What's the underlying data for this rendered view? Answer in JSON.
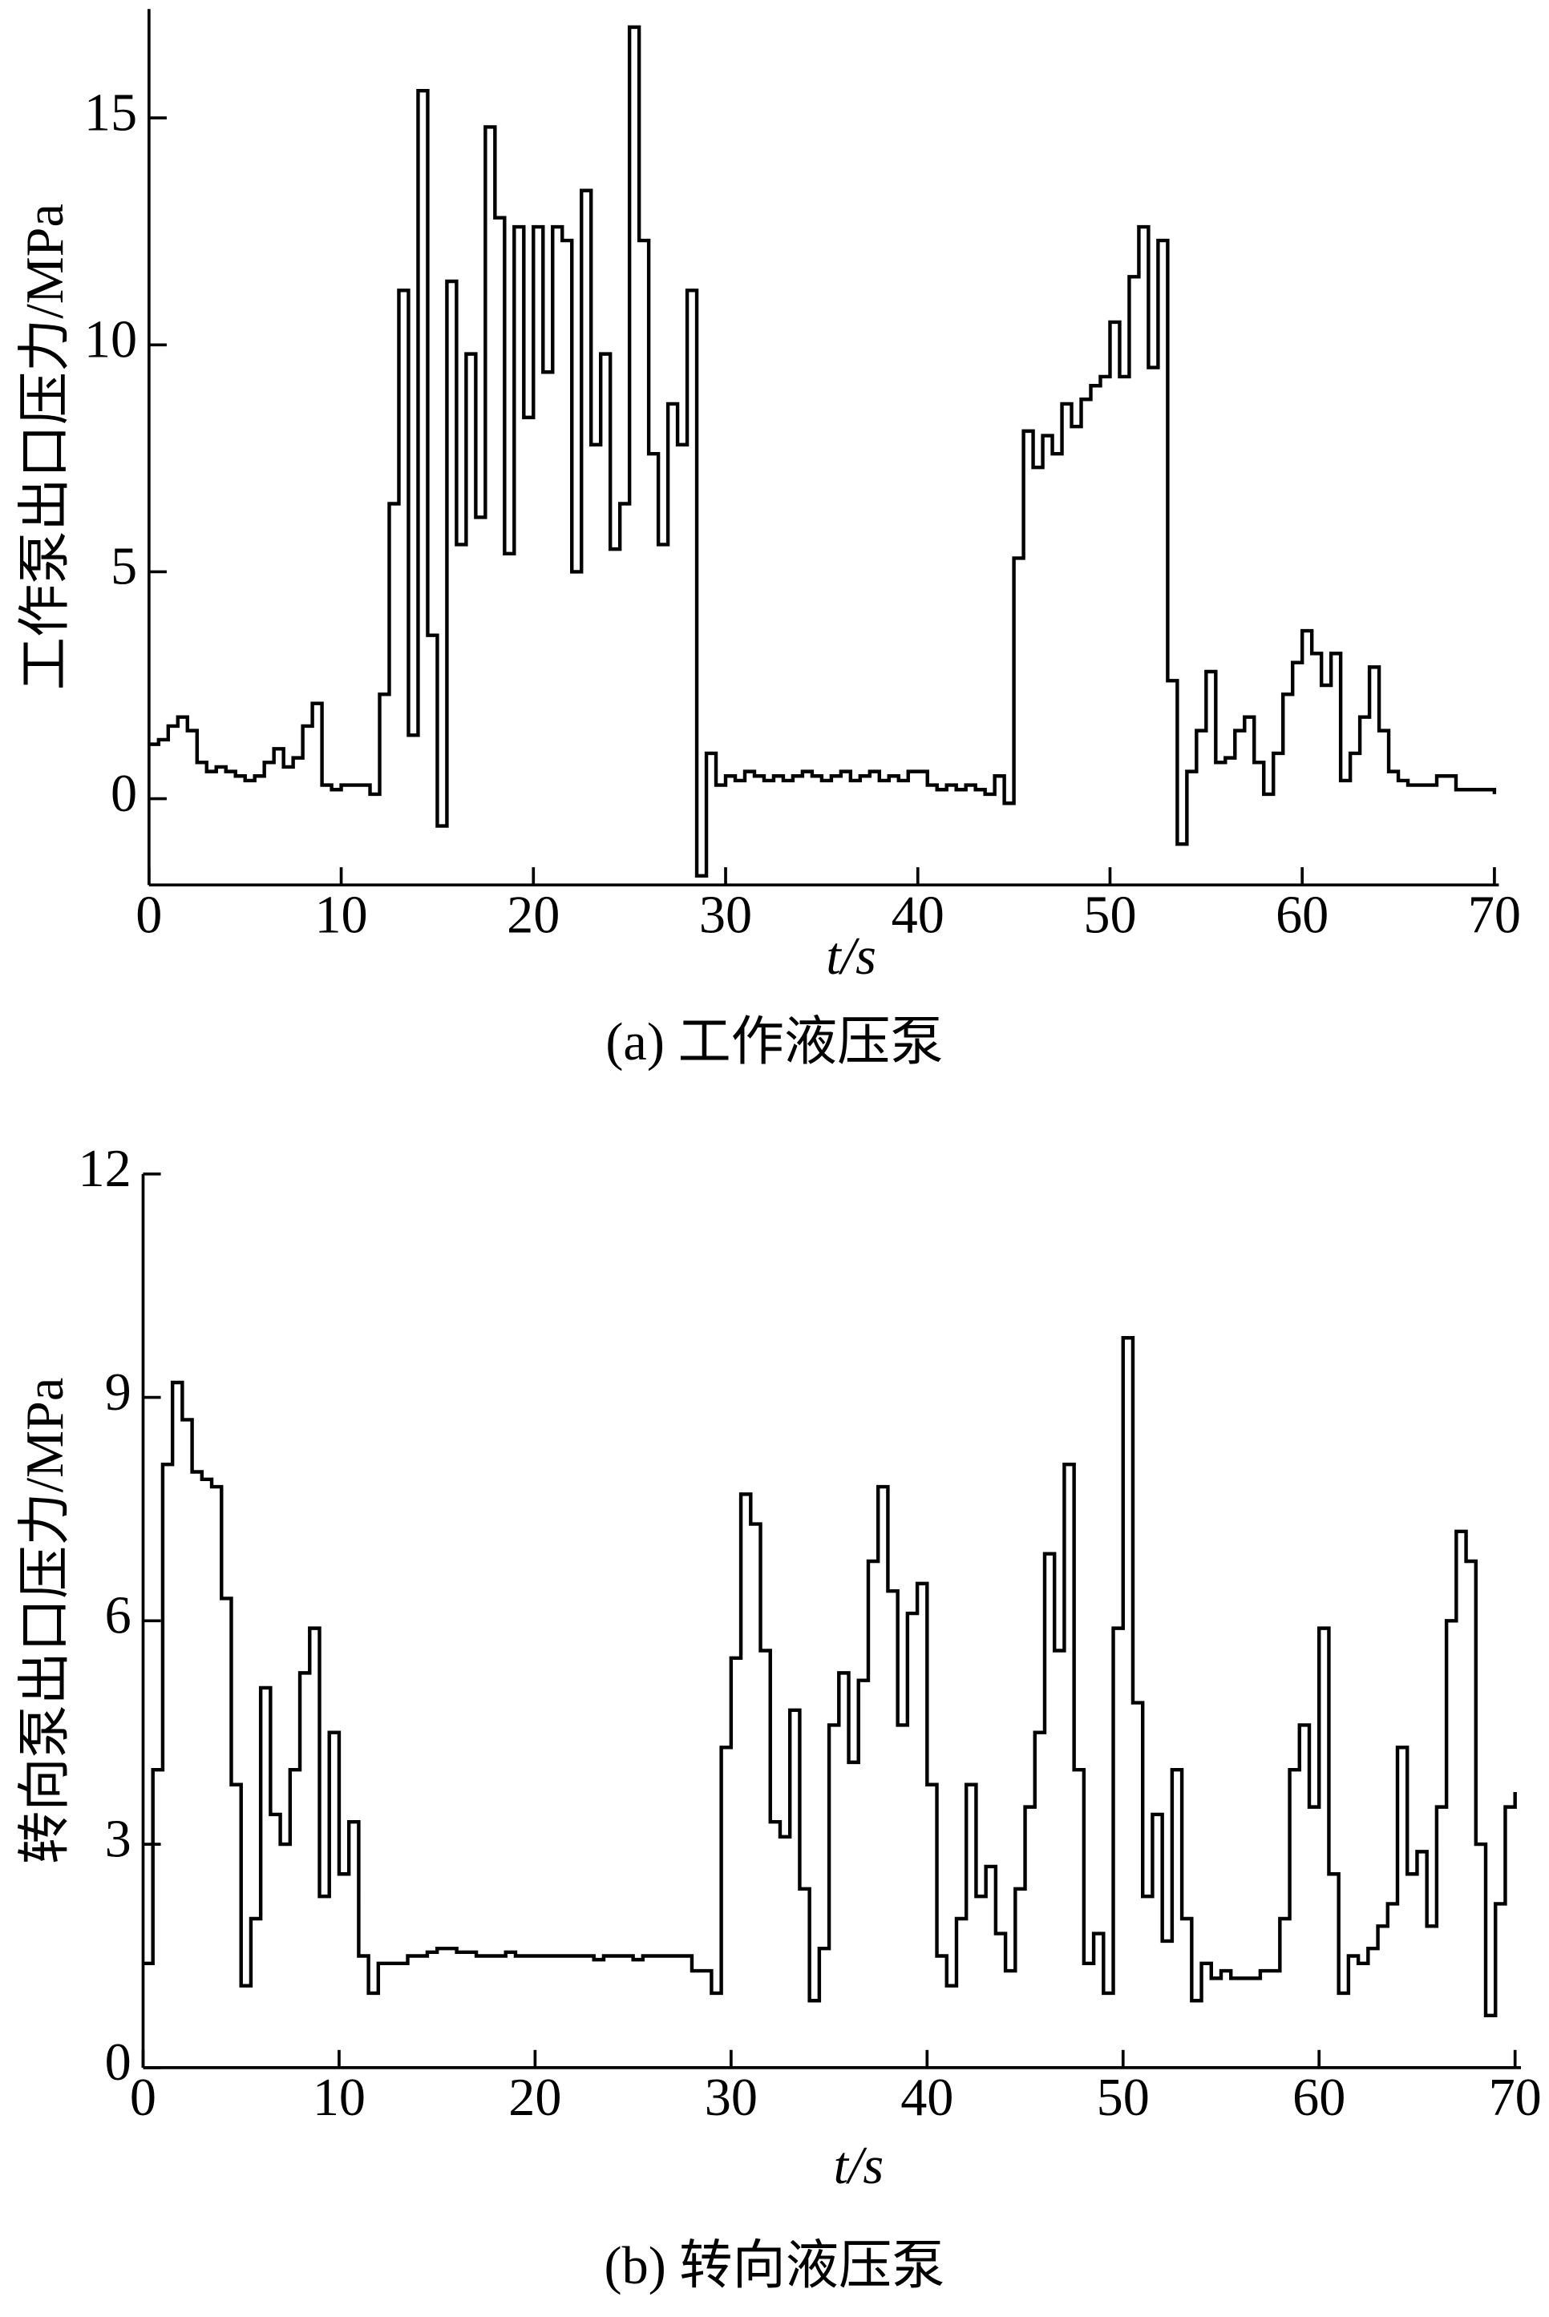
{
  "chart_data": [
    {
      "type": "line",
      "step": true,
      "caption": "(a) 工作液压泵",
      "x_label": "t/s",
      "y_label": "工作泵出口压力/MPa",
      "color": "#000000",
      "xlim": [
        0,
        70
      ],
      "ylim": [
        -1.9,
        17.4
      ],
      "xticks": [
        0,
        10,
        20,
        30,
        40,
        50,
        60,
        70
      ],
      "yticks": [
        0,
        5,
        10,
        15
      ],
      "x": [
        0,
        0.5,
        1,
        1.5,
        2,
        2.5,
        3,
        3.5,
        4,
        4.5,
        5,
        5.5,
        6,
        6.5,
        7,
        7.5,
        8,
        8.5,
        9,
        9.5,
        10,
        10.5,
        11,
        11.5,
        12,
        12.5,
        13,
        13.5,
        14,
        14.5,
        15,
        15.5,
        16,
        16.5,
        17,
        17.5,
        18,
        18.5,
        19,
        19.5,
        20,
        20.5,
        21,
        21.5,
        22,
        22.5,
        23,
        23.5,
        24,
        24.5,
        25,
        25.5,
        26,
        26.5,
        27,
        27.5,
        28,
        28.5,
        29,
        29.5,
        30,
        30.5,
        31,
        31.5,
        32,
        32.5,
        33,
        33.5,
        34,
        34.5,
        35,
        35.5,
        36,
        36.5,
        37,
        37.5,
        38,
        38.5,
        39,
        39.5,
        40,
        40.5,
        41,
        41.5,
        42,
        42.5,
        43,
        43.5,
        44,
        44.5,
        45,
        45.5,
        46,
        46.5,
        47,
        47.5,
        48,
        48.5,
        49,
        49.5,
        50,
        50.5,
        51,
        51.5,
        52,
        52.5,
        53,
        53.5,
        54,
        54.5,
        55,
        55.5,
        56,
        56.5,
        57,
        57.5,
        58,
        58.5,
        59,
        59.5,
        60,
        60.5,
        61,
        61.5,
        62,
        62.5,
        63,
        63.5,
        64,
        64.5,
        65,
        65.5,
        66,
        66.5,
        67,
        67.5,
        68,
        68.5,
        69,
        69.5,
        70
      ],
      "values": [
        1.2,
        1.3,
        1.6,
        1.8,
        1.5,
        0.8,
        0.6,
        0.7,
        0.6,
        0.5,
        0.4,
        0.5,
        0.8,
        1.1,
        0.7,
        0.9,
        1.6,
        2.1,
        0.3,
        0.2,
        0.3,
        0.3,
        0.3,
        0.1,
        2.3,
        6.5,
        11.2,
        1.4,
        15.6,
        3.6,
        -0.6,
        11.4,
        5.6,
        9.8,
        6.2,
        14.8,
        12.8,
        5.4,
        12.6,
        8.4,
        12.6,
        9.4,
        12.6,
        12.3,
        5,
        13.4,
        7.8,
        9.8,
        5.5,
        6.5,
        17,
        12.3,
        7.6,
        5.6,
        8.7,
        7.8,
        11.2,
        -1.7,
        1,
        0.3,
        0.5,
        0.4,
        0.6,
        0.5,
        0.4,
        0.5,
        0.4,
        0.5,
        0.6,
        0.5,
        0.4,
        0.5,
        0.6,
        0.4,
        0.5,
        0.6,
        0.4,
        0.5,
        0.4,
        0.6,
        0.6,
        0.3,
        0.2,
        0.3,
        0.2,
        0.3,
        0.2,
        0.1,
        0.5,
        -0.1,
        5.3,
        8.1,
        7.3,
        8,
        7.6,
        8.7,
        8.2,
        8.8,
        9.1,
        9.3,
        10.5,
        9.3,
        11.5,
        12.6,
        9.5,
        12.3,
        2.6,
        -1,
        0.6,
        1.5,
        2.8,
        0.8,
        0.9,
        1.5,
        1.8,
        0.8,
        0.1,
        1,
        2.3,
        3,
        3.7,
        3.2,
        2.5,
        3.2,
        0.4,
        1,
        1.8,
        2.9,
        1.5,
        0.6,
        0.4,
        0.3,
        0.3,
        0.3,
        0.5,
        0.5,
        0.2,
        0.2,
        0.2,
        0.2,
        0.1
      ]
    },
    {
      "type": "line",
      "step": true,
      "caption": "(b) 转向液压泵",
      "x_label": "t/s",
      "y_label": "转向泵出口压力/MPa",
      "color": "#000000",
      "xlim": [
        0,
        70
      ],
      "ylim": [
        0,
        12
      ],
      "xticks": [
        0,
        10,
        20,
        30,
        40,
        50,
        60,
        70
      ],
      "yticks": [
        0,
        3,
        6,
        9,
        12
      ],
      "x": [
        0,
        0.5,
        1,
        1.5,
        2,
        2.5,
        3,
        3.5,
        4,
        4.5,
        5,
        5.5,
        6,
        6.5,
        7,
        7.5,
        8,
        8.5,
        9,
        9.5,
        10,
        10.5,
        11,
        11.5,
        12,
        12.5,
        13,
        13.5,
        14,
        14.5,
        15,
        15.5,
        16,
        16.5,
        17,
        17.5,
        18,
        18.5,
        19,
        19.5,
        20,
        20.5,
        21,
        21.5,
        22,
        22.5,
        23,
        23.5,
        24,
        24.5,
        25,
        25.5,
        26,
        26.5,
        27,
        27.5,
        28,
        28.5,
        29,
        29.5,
        30,
        30.5,
        31,
        31.5,
        32,
        32.5,
        33,
        33.5,
        34,
        34.5,
        35,
        35.5,
        36,
        36.5,
        37,
        37.5,
        38,
        38.5,
        39,
        39.5,
        40,
        40.5,
        41,
        41.5,
        42,
        42.5,
        43,
        43.5,
        44,
        44.5,
        45,
        45.5,
        46,
        46.5,
        47,
        47.5,
        48,
        48.5,
        49,
        49.5,
        50,
        50.5,
        51,
        51.5,
        52,
        52.5,
        53,
        53.5,
        54,
        54.5,
        55,
        55.5,
        56,
        56.5,
        57,
        57.5,
        58,
        58.5,
        59,
        59.5,
        60,
        60.5,
        61,
        61.5,
        62,
        62.5,
        63,
        63.5,
        64,
        64.5,
        65,
        65.5,
        66,
        66.5,
        67,
        67.5,
        68,
        68.5,
        69,
        69.5,
        70
      ],
      "values": [
        1.4,
        4,
        8.1,
        9.2,
        8.7,
        8,
        7.9,
        7.8,
        6.3,
        3.8,
        1.1,
        2,
        5.1,
        3.4,
        3,
        4,
        5.3,
        5.9,
        2.3,
        4.5,
        2.6,
        3.3,
        1.5,
        1,
        1.4,
        1.4,
        1.4,
        1.5,
        1.5,
        1.55,
        1.6,
        1.6,
        1.55,
        1.55,
        1.5,
        1.5,
        1.5,
        1.55,
        1.5,
        1.5,
        1.5,
        1.5,
        1.5,
        1.5,
        1.5,
        1.5,
        1.45,
        1.5,
        1.5,
        1.5,
        1.45,
        1.5,
        1.5,
        1.5,
        1.5,
        1.5,
        1.3,
        1.3,
        1,
        4.3,
        5.5,
        7.7,
        7.3,
        5.6,
        3.3,
        3.1,
        4.8,
        2.4,
        0.9,
        1.6,
        4.6,
        5.3,
        4.1,
        5.2,
        6.8,
        7.8,
        6.4,
        4.6,
        6.1,
        6.5,
        3.8,
        1.5,
        1.1,
        2,
        3.8,
        2.3,
        2.7,
        1.8,
        1.3,
        2.4,
        3.5,
        4.5,
        6.9,
        5.6,
        8.1,
        4,
        1.4,
        1.8,
        1,
        5.9,
        9.8,
        4.9,
        2.3,
        3.4,
        1.7,
        4,
        2,
        0.9,
        1.4,
        1.2,
        1.3,
        1.2,
        1.2,
        1.2,
        1.3,
        1.3,
        2,
        4,
        4.6,
        3.5,
        5.9,
        2.6,
        1,
        1.5,
        1.4,
        1.6,
        1.9,
        2.2,
        4.3,
        2.6,
        2.9,
        1.9,
        3.5,
        6,
        7.2,
        6.8,
        3,
        0.7,
        2.2,
        3.5,
        3.7
      ]
    }
  ]
}
